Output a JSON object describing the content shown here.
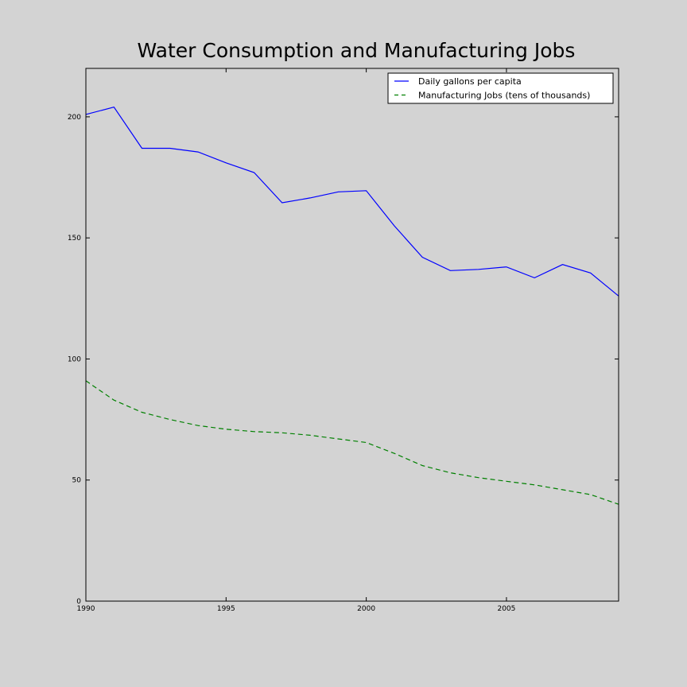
{
  "chart_data": {
    "type": "line",
    "title": "Water Consumption and Manufacturing Jobs",
    "xlabel": "",
    "ylabel": "",
    "xlim": [
      1990,
      2009
    ],
    "ylim": [
      0,
      220
    ],
    "xticks": [
      1990,
      1995,
      2000,
      2005
    ],
    "yticks": [
      0,
      50,
      100,
      150,
      200
    ],
    "grid": false,
    "legend_position": "top-right",
    "x": [
      1990,
      1991,
      1992,
      1993,
      1994,
      1995,
      1996,
      1997,
      1998,
      1999,
      2000,
      2001,
      2002,
      2003,
      2004,
      2005,
      2006,
      2007,
      2008,
      2009
    ],
    "series": [
      {
        "name": "Daily gallons per capita",
        "color": "#0000ff",
        "dash": "solid",
        "values": [
          201,
          204,
          187,
          187,
          185.5,
          181,
          177,
          164.5,
          166.5,
          169,
          169.5,
          155,
          142,
          136.5,
          137,
          138,
          133.5,
          139,
          135.5,
          126
        ]
      },
      {
        "name": "Manufacturing Jobs (tens of thousands)",
        "color": "#008000",
        "dash": "dashed",
        "values": [
          91,
          83,
          78,
          75,
          72.5,
          71,
          70,
          69.5,
          68.5,
          67,
          65.5,
          61,
          56,
          53,
          51,
          49.5,
          48,
          46,
          44,
          40
        ]
      }
    ]
  }
}
